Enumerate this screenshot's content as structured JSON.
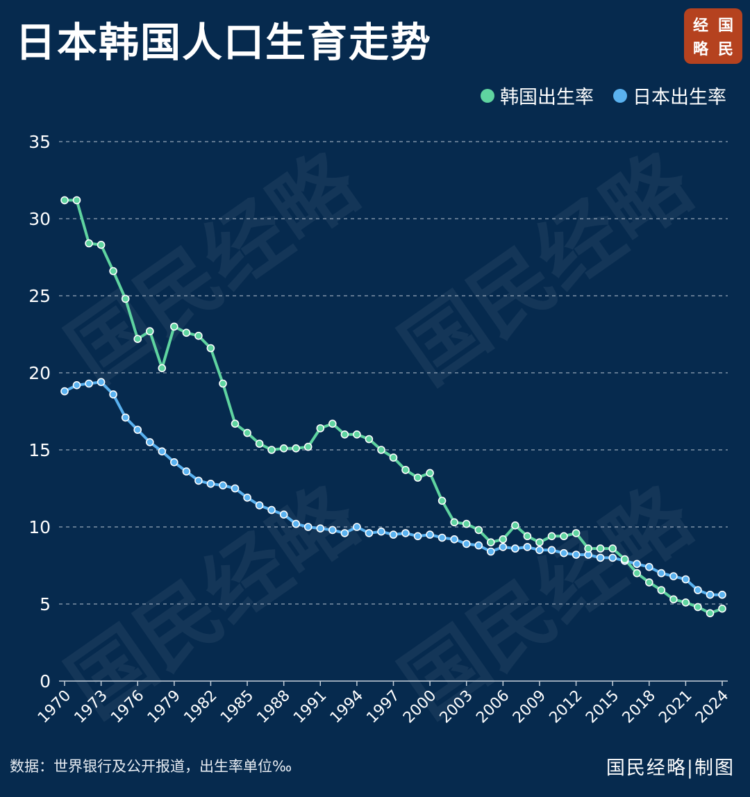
{
  "title": "日本韩国人口生育走势",
  "logo": {
    "chars": [
      "经",
      "国",
      "略",
      "民"
    ],
    "color": "#b5421f"
  },
  "watermark": "国民经略",
  "footer": {
    "source": "数据：世界银行及公开报道，出生率单位‰",
    "credit": "国民经略|制图"
  },
  "colors": {
    "background": "#062a4e",
    "korea": "#5fd4a0",
    "japan": "#5ab2f0",
    "grid": "#c8d2dc",
    "text": "#ffffff"
  },
  "chart_data": {
    "type": "line",
    "ylim": [
      0,
      35
    ],
    "yticks": [
      0,
      5,
      10,
      15,
      20,
      25,
      30,
      35
    ],
    "xlim": [
      1970,
      2024
    ],
    "xticks": [
      1970,
      1973,
      1976,
      1979,
      1982,
      1985,
      1988,
      1991,
      1994,
      1997,
      2000,
      2003,
      2006,
      2009,
      2012,
      2015,
      2018,
      2021,
      2024
    ],
    "grid": true,
    "legend_position": "top-right",
    "x": [
      1970,
      1971,
      1972,
      1973,
      1974,
      1975,
      1976,
      1977,
      1978,
      1979,
      1980,
      1981,
      1982,
      1983,
      1984,
      1985,
      1986,
      1987,
      1988,
      1989,
      1990,
      1991,
      1992,
      1993,
      1994,
      1995,
      1996,
      1997,
      1998,
      1999,
      2000,
      2001,
      2002,
      2003,
      2004,
      2005,
      2006,
      2007,
      2008,
      2009,
      2010,
      2011,
      2012,
      2013,
      2014,
      2015,
      2016,
      2017,
      2018,
      2019,
      2020,
      2021,
      2022,
      2023,
      2024
    ],
    "series": [
      {
        "name": "韩国出生率",
        "color": "#5fd4a0",
        "values": [
          31.2,
          31.2,
          28.4,
          28.3,
          26.6,
          24.8,
          22.2,
          22.7,
          20.3,
          23.0,
          22.6,
          22.4,
          21.6,
          19.3,
          16.7,
          16.1,
          15.4,
          15.0,
          15.1,
          15.1,
          15.2,
          16.4,
          16.7,
          16.0,
          16.0,
          15.7,
          15.0,
          14.5,
          13.7,
          13.2,
          13.5,
          11.7,
          10.3,
          10.2,
          9.8,
          9.0,
          9.2,
          10.1,
          9.4,
          9.0,
          9.4,
          9.4,
          9.6,
          8.6,
          8.6,
          8.6,
          7.9,
          7.0,
          6.4,
          5.9,
          5.3,
          5.1,
          4.8,
          4.4,
          4.7
        ]
      },
      {
        "name": "日本出生率",
        "color": "#5ab2f0",
        "values": [
          18.8,
          19.2,
          19.3,
          19.4,
          18.6,
          17.1,
          16.3,
          15.5,
          14.9,
          14.2,
          13.6,
          13.0,
          12.8,
          12.7,
          12.5,
          11.9,
          11.4,
          11.1,
          10.8,
          10.2,
          10.0,
          9.9,
          9.8,
          9.6,
          10.0,
          9.6,
          9.7,
          9.5,
          9.6,
          9.4,
          9.5,
          9.3,
          9.2,
          8.9,
          8.8,
          8.4,
          8.7,
          8.6,
          8.7,
          8.5,
          8.5,
          8.3,
          8.2,
          8.2,
          8.0,
          8.0,
          7.8,
          7.6,
          7.4,
          7.0,
          6.8,
          6.6,
          5.9,
          5.6,
          5.6
        ]
      }
    ]
  }
}
